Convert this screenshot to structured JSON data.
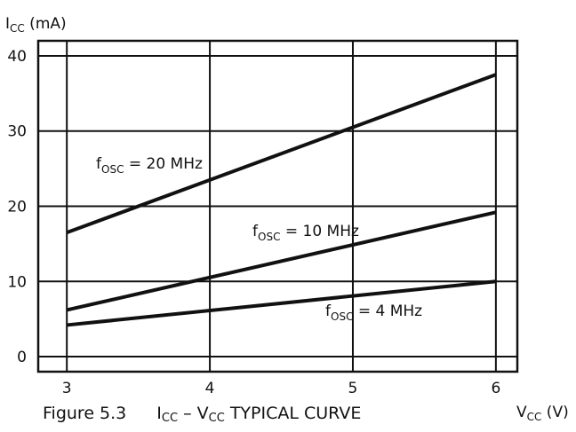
{
  "chart_data": {
    "type": "line",
    "ylabel": {
      "main": "I",
      "sub": "CC",
      "rest": " (mA)"
    },
    "xlabel": {
      "main": "V",
      "sub": "CC",
      "rest": " (V)"
    },
    "xlim": [
      2.8,
      6.15
    ],
    "ylim": [
      -2,
      42
    ],
    "x_ticks": [
      "3",
      "4",
      "5",
      "6"
    ],
    "y_ticks": [
      "0",
      "10",
      "20",
      "30",
      "40"
    ],
    "grid": true,
    "series": [
      {
        "name": "fOSC = 20 MHz",
        "label_main": "f",
        "label_sub": "OSC",
        "label_rest": " = 20 MHz",
        "x": [
          3,
          6
        ],
        "y": [
          16.5,
          37.5
        ]
      },
      {
        "name": "fOSC = 10 MHz",
        "label_main": "f",
        "label_sub": "OSC",
        "label_rest": " = 10 MHz",
        "x": [
          3,
          6
        ],
        "y": [
          6.2,
          19.2
        ]
      },
      {
        "name": "fOSC = 4 MHz",
        "label_main": "f",
        "label_sub": "OSC",
        "label_rest": " = 4 MHz",
        "x": [
          3,
          6
        ],
        "y": [
          4.2,
          10.0
        ]
      }
    ]
  },
  "caption": {
    "figure": "Figure 5.3",
    "t1": "I",
    "s1": "CC",
    "t2": " – V",
    "s2": "CC",
    "t3": " TYPICAL CURVE"
  }
}
